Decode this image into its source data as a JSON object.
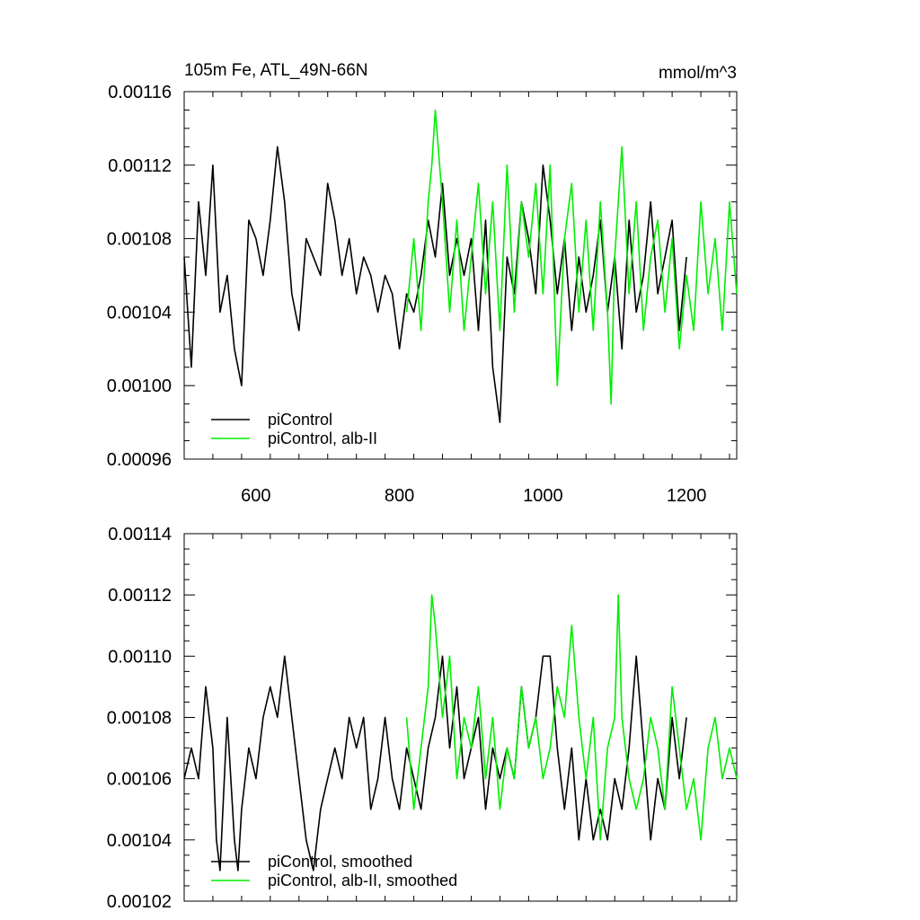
{
  "chart_data": [
    {
      "type": "line",
      "title": "105m Fe, ATL_49N-66N",
      "units_label": "mmol/m^3",
      "xlim": [
        500,
        1270
      ],
      "ylim": [
        0.00096,
        0.00116
      ],
      "x_ticks": [
        600,
        800,
        1000,
        1200
      ],
      "x_tick_labels": [
        "600",
        "800",
        "1000",
        "1200"
      ],
      "y_ticks": [
        0.00096,
        0.001,
        0.00104,
        0.00108,
        0.00112,
        0.00116
      ],
      "y_tick_labels": [
        "0.00096",
        "0.00100",
        "0.00104",
        "0.00108",
        "0.00112",
        "0.00116"
      ],
      "legend_position": "bottom-left",
      "series": [
        {
          "name": "piControl",
          "color": "#000000",
          "x": [
            500,
            510,
            520,
            530,
            540,
            550,
            560,
            570,
            580,
            590,
            600,
            610,
            620,
            630,
            640,
            650,
            660,
            670,
            680,
            690,
            700,
            710,
            720,
            730,
            740,
            750,
            760,
            770,
            780,
            790,
            800,
            810,
            820,
            830,
            840,
            850,
            860,
            870,
            880,
            890,
            900,
            910,
            920,
            930,
            940,
            950,
            960,
            970,
            980,
            990,
            1000,
            1010,
            1020,
            1030,
            1040,
            1050,
            1060,
            1070,
            1080,
            1090,
            1100,
            1110,
            1120,
            1130,
            1140,
            1150,
            1160,
            1170,
            1180,
            1190,
            1200
          ],
          "y": [
            0.00107,
            0.00101,
            0.0011,
            0.00106,
            0.00112,
            0.00104,
            0.00106,
            0.00102,
            0.001,
            0.00109,
            0.00108,
            0.00106,
            0.00109,
            0.00113,
            0.0011,
            0.00105,
            0.00103,
            0.00108,
            0.00107,
            0.00106,
            0.00111,
            0.00109,
            0.00106,
            0.00108,
            0.00105,
            0.00107,
            0.00106,
            0.00104,
            0.00106,
            0.00105,
            0.00102,
            0.00105,
            0.00104,
            0.00106,
            0.00109,
            0.00107,
            0.00111,
            0.00106,
            0.00108,
            0.00106,
            0.00108,
            0.00103,
            0.00109,
            0.00101,
            0.00098,
            0.00107,
            0.00105,
            0.0011,
            0.00108,
            0.00105,
            0.00112,
            0.00109,
            0.00105,
            0.00108,
            0.00103,
            0.00107,
            0.00104,
            0.00106,
            0.00109,
            0.00104,
            0.00107,
            0.00102,
            0.00109,
            0.00104,
            0.00106,
            0.0011,
            0.00105,
            0.00107,
            0.00109,
            0.00103,
            0.00107
          ]
        },
        {
          "name": "piControl, alb-II",
          "color": "#00ee00",
          "x": [
            810,
            820,
            830,
            840,
            845,
            850,
            860,
            870,
            880,
            890,
            900,
            910,
            920,
            930,
            940,
            950,
            960,
            970,
            980,
            990,
            1000,
            1010,
            1020,
            1030,
            1040,
            1050,
            1060,
            1070,
            1080,
            1090,
            1095,
            1100,
            1110,
            1120,
            1130,
            1140,
            1150,
            1160,
            1170,
            1180,
            1190,
            1200,
            1210,
            1220,
            1230,
            1240,
            1250,
            1260,
            1270
          ],
          "y": [
            0.00104,
            0.00108,
            0.00103,
            0.0011,
            0.00112,
            0.00115,
            0.0011,
            0.00104,
            0.00109,
            0.00103,
            0.00107,
            0.00111,
            0.00105,
            0.0011,
            0.00103,
            0.00112,
            0.00104,
            0.0011,
            0.00107,
            0.00111,
            0.00105,
            0.00112,
            0.001,
            0.00108,
            0.00111,
            0.00104,
            0.00109,
            0.00103,
            0.0011,
            0.00104,
            0.00099,
            0.00107,
            0.00113,
            0.00105,
            0.0011,
            0.00103,
            0.00107,
            0.00109,
            0.00104,
            0.00108,
            0.00102,
            0.00106,
            0.00103,
            0.0011,
            0.00105,
            0.00108,
            0.00103,
            0.0011,
            0.00105
          ]
        }
      ]
    },
    {
      "type": "line",
      "xlim": [
        500,
        1270
      ],
      "ylim": [
        0.00102,
        0.00114
      ],
      "x_ticks": [
        600,
        800,
        1000,
        1200
      ],
      "y_ticks": [
        0.00102,
        0.00104,
        0.00106,
        0.00108,
        0.0011,
        0.00112,
        0.00114
      ],
      "y_tick_labels": [
        "0.00102",
        "0.00104",
        "0.00106",
        "0.00108",
        "0.00110",
        "0.00112",
        "0.00114"
      ],
      "legend_position": "bottom-left",
      "series": [
        {
          "name": "piControl, smoothed",
          "color": "#000000",
          "x": [
            500,
            510,
            520,
            530,
            540,
            545,
            550,
            560,
            570,
            575,
            580,
            590,
            600,
            610,
            620,
            630,
            640,
            650,
            660,
            670,
            680,
            690,
            700,
            710,
            720,
            730,
            740,
            750,
            760,
            770,
            780,
            790,
            800,
            810,
            820,
            830,
            840,
            850,
            860,
            870,
            880,
            890,
            900,
            910,
            920,
            930,
            940,
            950,
            960,
            970,
            980,
            990,
            1000,
            1010,
            1020,
            1030,
            1040,
            1050,
            1060,
            1070,
            1080,
            1090,
            1100,
            1110,
            1120,
            1130,
            1140,
            1150,
            1160,
            1170,
            1180,
            1190,
            1200
          ],
          "y": [
            0.00106,
            0.00107,
            0.00106,
            0.00109,
            0.00107,
            0.00104,
            0.00103,
            0.00108,
            0.00104,
            0.00103,
            0.00105,
            0.00107,
            0.00106,
            0.00108,
            0.00109,
            0.00108,
            0.0011,
            0.00108,
            0.00106,
            0.00104,
            0.00103,
            0.00105,
            0.00106,
            0.00107,
            0.00106,
            0.00108,
            0.00107,
            0.00108,
            0.00105,
            0.00106,
            0.00108,
            0.00106,
            0.00105,
            0.00107,
            0.00106,
            0.00105,
            0.00107,
            0.00108,
            0.0011,
            0.00107,
            0.00109,
            0.00106,
            0.00107,
            0.00108,
            0.00105,
            0.00107,
            0.00106,
            0.00107,
            0.00106,
            0.00109,
            0.00107,
            0.00108,
            0.0011,
            0.0011,
            0.00107,
            0.00105,
            0.00107,
            0.00104,
            0.00106,
            0.00104,
            0.00105,
            0.00104,
            0.00106,
            0.00105,
            0.00107,
            0.0011,
            0.00107,
            0.00104,
            0.00106,
            0.00105,
            0.00108,
            0.00106,
            0.00108
          ]
        },
        {
          "name": "piControl, alb-II, smoothed",
          "color": "#00ee00",
          "x": [
            810,
            820,
            830,
            840,
            845,
            850,
            860,
            870,
            880,
            890,
            900,
            910,
            920,
            930,
            940,
            950,
            960,
            970,
            980,
            990,
            1000,
            1010,
            1020,
            1030,
            1040,
            1050,
            1060,
            1070,
            1080,
            1090,
            1100,
            1105,
            1110,
            1120,
            1130,
            1140,
            1150,
            1160,
            1170,
            1180,
            1190,
            1200,
            1210,
            1220,
            1230,
            1240,
            1250,
            1260,
            1270
          ],
          "y": [
            0.00108,
            0.00105,
            0.00107,
            0.00109,
            0.00112,
            0.00111,
            0.00108,
            0.0011,
            0.00106,
            0.00108,
            0.00107,
            0.00109,
            0.00106,
            0.00108,
            0.00105,
            0.00107,
            0.00106,
            0.00109,
            0.00107,
            0.00108,
            0.00106,
            0.00107,
            0.00109,
            0.00108,
            0.00111,
            0.00108,
            0.00106,
            0.00108,
            0.00104,
            0.00107,
            0.00108,
            0.00112,
            0.00108,
            0.00106,
            0.00105,
            0.00106,
            0.00108,
            0.00107,
            0.00105,
            0.00109,
            0.00107,
            0.00105,
            0.00106,
            0.00104,
            0.00107,
            0.00108,
            0.00106,
            0.00107,
            0.00106
          ]
        }
      ]
    }
  ]
}
